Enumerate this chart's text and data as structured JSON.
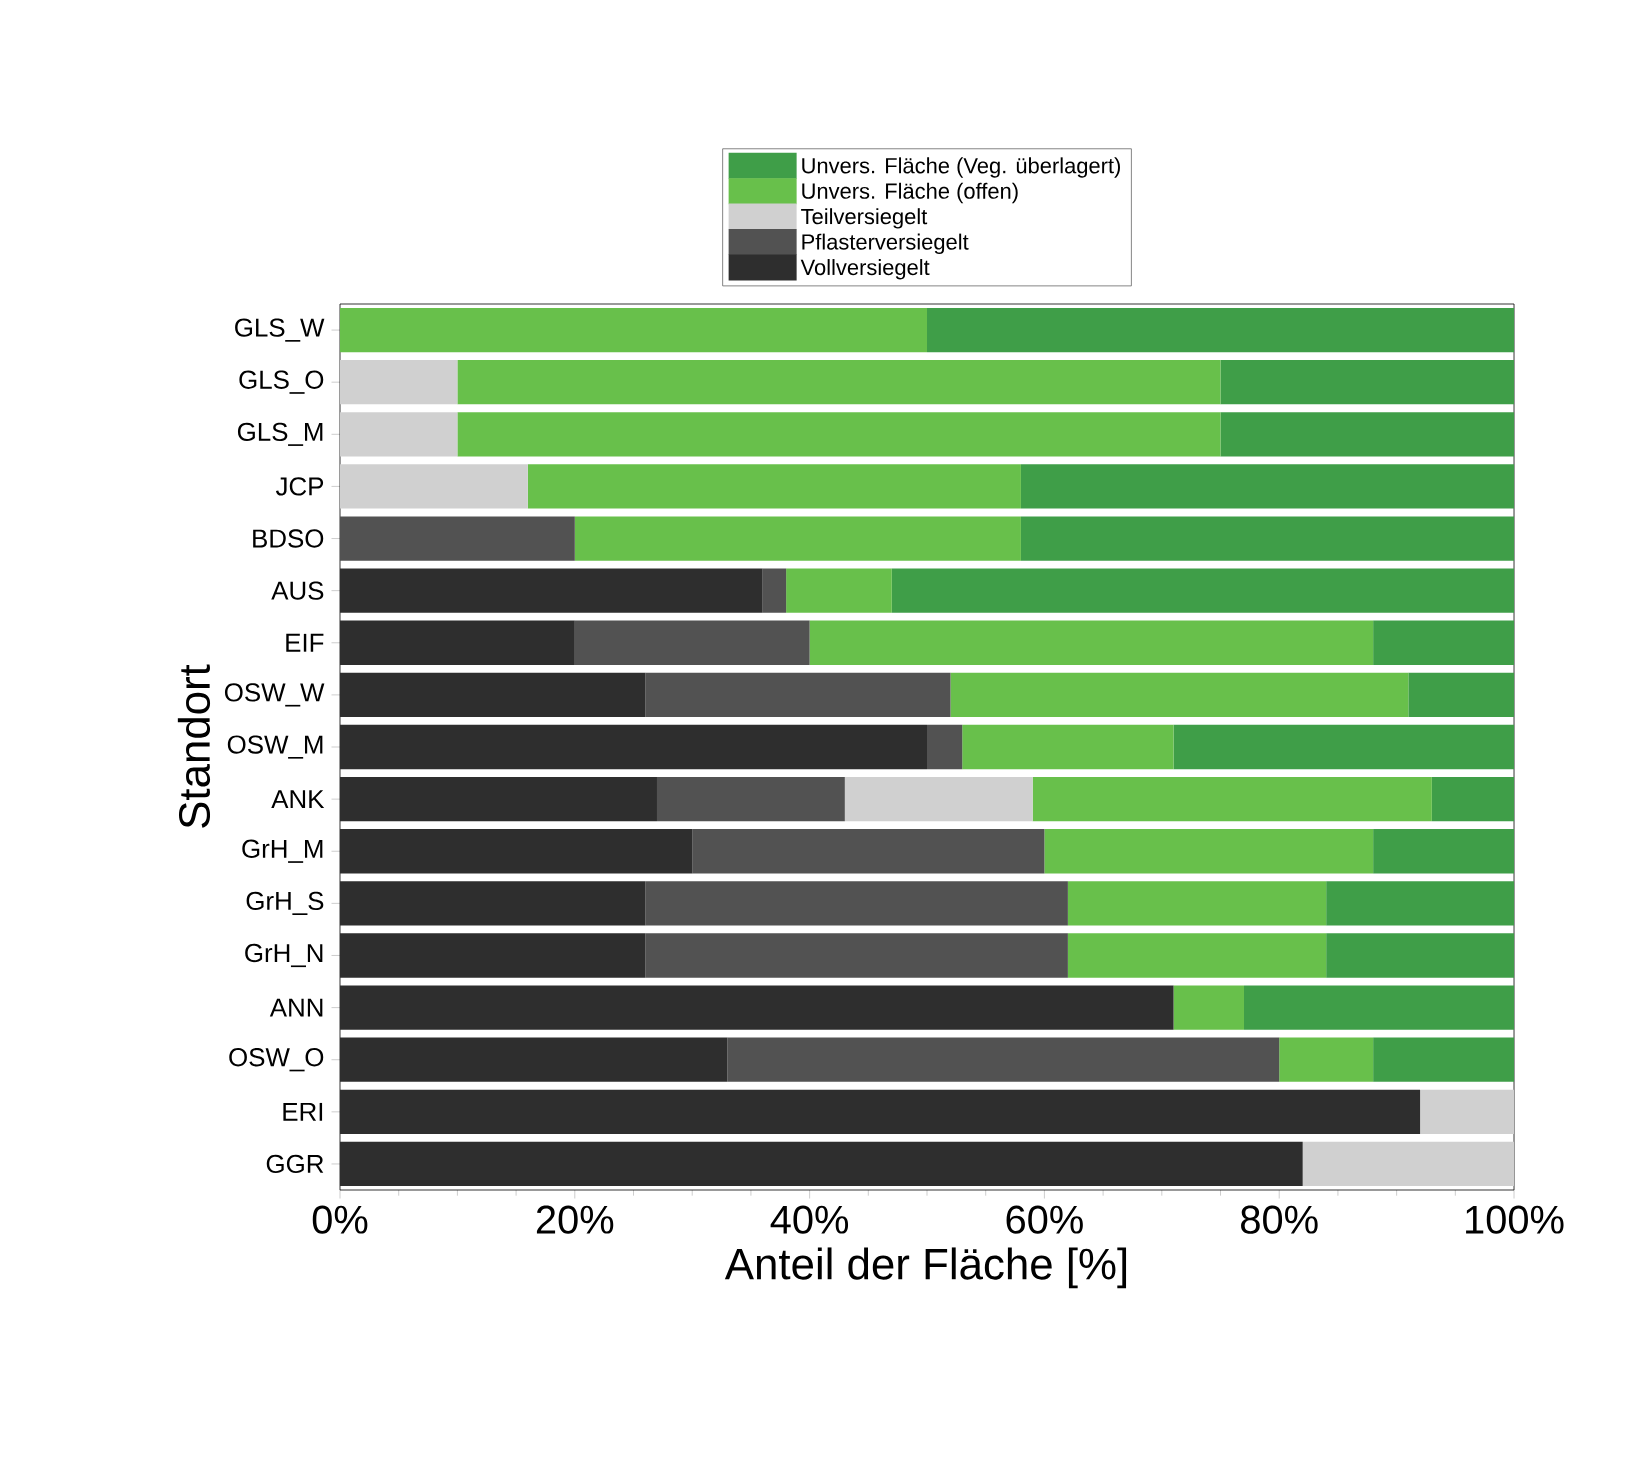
{
  "chart_data": {
    "type": "bar",
    "orientation": "horizontal",
    "stacked": true,
    "xlabel": "Anteil der Fläche [%]",
    "ylabel": "Standort",
    "categories": [
      "GLS_W",
      "GLS_O",
      "GLS_M",
      "JCP",
      "BDSO",
      "AUS",
      "EIF",
      "OSW_W",
      "OSW_M",
      "ANK",
      "GrH_M",
      "GrH_S",
      "GrH_N",
      "ANN",
      "OSW_O",
      "ERI",
      "GGR"
    ],
    "series": [
      {
        "name": "Vollversiegelt",
        "color": "#2e2e2e",
        "values": [
          0,
          0,
          0,
          0,
          0,
          36,
          20,
          26,
          50,
          27,
          30,
          26,
          26,
          71,
          33,
          92,
          82
        ]
      },
      {
        "name": "Pflasterversiegelt",
        "color": "#525252",
        "values": [
          0,
          0,
          0,
          0,
          20,
          2,
          20,
          26,
          3,
          16,
          30,
          36,
          36,
          0,
          47,
          0,
          0
        ]
      },
      {
        "name": "Teilversiegelt",
        "color": "#d0d0d0",
        "values": [
          0,
          10,
          10,
          16,
          0,
          0,
          0,
          0,
          0,
          16,
          0,
          0,
          0,
          0,
          0,
          8,
          18
        ]
      },
      {
        "name": "Unvers. Fläche (offen)",
        "color": "#68c04b",
        "values": [
          50,
          65,
          65,
          42,
          38,
          9,
          48,
          39,
          18,
          34,
          28,
          22,
          22,
          6,
          8,
          0,
          0
        ]
      },
      {
        "name": "Unvers. Fläche (Veg. überlagert)",
        "color": "#3f9e48",
        "values": [
          50,
          25,
          25,
          42,
          42,
          53,
          12,
          9,
          29,
          7,
          12,
          16,
          16,
          23,
          12,
          0,
          0
        ]
      }
    ],
    "xlim": [
      0,
      100
    ],
    "xticks": [
      {
        "value": 0,
        "label": "0%"
      },
      {
        "value": 20,
        "label": "20%"
      },
      {
        "value": 40,
        "label": "40%"
      },
      {
        "value": 60,
        "label": "60%"
      },
      {
        "value": 80,
        "label": "80%"
      },
      {
        "value": 100,
        "label": "100%"
      }
    ],
    "legend": "top",
    "grid": false
  }
}
